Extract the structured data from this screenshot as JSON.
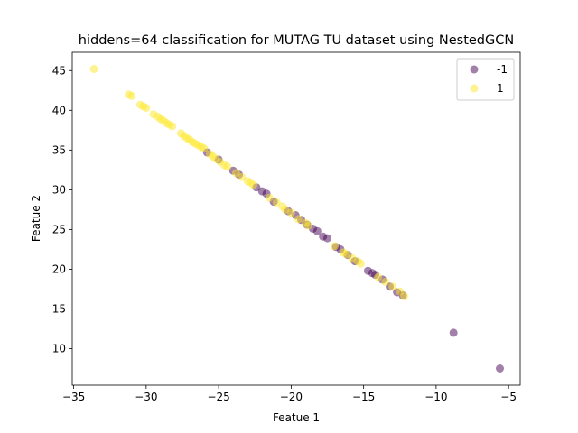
{
  "chart_data": {
    "type": "scatter",
    "title": "hiddens=64 classification for MUTAG TU dataset using NestedGCN",
    "xlabel": "Featue 1",
    "ylabel": "Featue 2",
    "xlim": [
      -35.1,
      -4.2
    ],
    "ylim": [
      5.4,
      47.3
    ],
    "xticks": [
      -35,
      -30,
      -25,
      -20,
      -15,
      -10,
      -5
    ],
    "yticks": [
      10,
      15,
      20,
      25,
      30,
      35,
      40,
      45
    ],
    "grid": false,
    "legend_position": "top-right",
    "series": [
      {
        "name": "-1",
        "color": "#440154",
        "x": [
          -25.8,
          -25.0,
          -24.0,
          -23.6,
          -22.4,
          -22.0,
          -21.7,
          -21.2,
          -20.2,
          -19.7,
          -19.3,
          -18.9,
          -18.5,
          -18.2,
          -17.8,
          -17.5,
          -16.9,
          -16.6,
          -16.1,
          -15.6,
          -14.7,
          -14.4,
          -14.2,
          -13.7,
          -13.2,
          -12.7,
          -12.3,
          -8.8,
          -5.6
        ],
        "y": [
          34.7,
          33.8,
          32.4,
          31.9,
          30.3,
          29.8,
          29.5,
          28.5,
          27.3,
          26.8,
          26.2,
          25.6,
          25.1,
          24.8,
          24.1,
          23.9,
          22.8,
          22.5,
          21.8,
          21.0,
          19.8,
          19.5,
          19.3,
          18.7,
          17.8,
          17.1,
          16.7,
          12.0,
          7.5
        ]
      },
      {
        "name": "1",
        "color": "#fde725",
        "x": [
          -33.6,
          -31.2,
          -31.0,
          -30.4,
          -30.2,
          -30.0,
          -29.5,
          -29.2,
          -29.0,
          -28.8,
          -28.6,
          -28.4,
          -28.2,
          -27.6,
          -27.4,
          -27.2,
          -27.0,
          -26.8,
          -26.6,
          -26.4,
          -26.2,
          -26.0,
          -25.6,
          -25.4,
          -25.2,
          -24.9,
          -24.6,
          -24.4,
          -23.8,
          -23.4,
          -23.0,
          -22.8,
          -22.6,
          -21.5,
          -21.0,
          -20.6,
          -20.4,
          -20.0,
          -19.5,
          -19.0,
          -18.8,
          -17.0,
          -16.4,
          -16.2,
          -15.8,
          -15.4,
          -15.2,
          -14.0,
          -13.5,
          -13.0,
          -12.5,
          -12.2
        ],
        "y": [
          45.2,
          42.0,
          41.8,
          40.7,
          40.5,
          40.3,
          39.5,
          39.2,
          38.9,
          38.7,
          38.4,
          38.2,
          38.0,
          37.1,
          36.8,
          36.5,
          36.3,
          36.0,
          35.8,
          35.6,
          35.4,
          35.2,
          34.5,
          34.2,
          33.9,
          33.5,
          33.1,
          32.9,
          32.1,
          31.6,
          31.1,
          30.9,
          30.6,
          29.0,
          28.4,
          27.9,
          27.5,
          27.1,
          26.3,
          25.8,
          25.5,
          22.9,
          22.1,
          21.9,
          21.4,
          21.0,
          20.7,
          19.0,
          18.4,
          17.8,
          17.2,
          16.6
        ]
      }
    ]
  }
}
